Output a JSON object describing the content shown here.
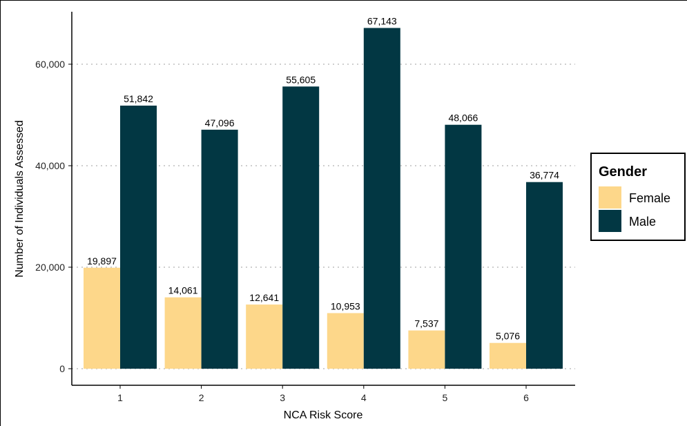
{
  "chart_data": {
    "type": "bar",
    "title": "",
    "xlabel": "NCA Risk Score",
    "ylabel": "Number of Individuals Assessed",
    "categories": [
      "1",
      "2",
      "3",
      "4",
      "5",
      "6"
    ],
    "ylim": [
      0,
      70000
    ],
    "yticks": [
      0,
      20000,
      40000,
      60000
    ],
    "ytick_labels": [
      "0",
      "20,000",
      "40,000",
      "60,000"
    ],
    "grid": "horizontal dotted",
    "series": [
      {
        "name": "Female",
        "color": "#FDD78A",
        "values": [
          19897,
          14061,
          12641,
          10953,
          7537,
          5076
        ],
        "labels": [
          "19,897",
          "14,061",
          "12,641",
          "10,953",
          "7,537",
          "5,076"
        ]
      },
      {
        "name": "Male",
        "color": "#023743",
        "values": [
          51842,
          47096,
          55605,
          67143,
          48066,
          36774
        ],
        "labels": [
          "51,842",
          "47,096",
          "55,605",
          "67,143",
          "48,066",
          "36,774"
        ]
      }
    ],
    "legend": {
      "title": "Gender",
      "placement": "right"
    }
  }
}
